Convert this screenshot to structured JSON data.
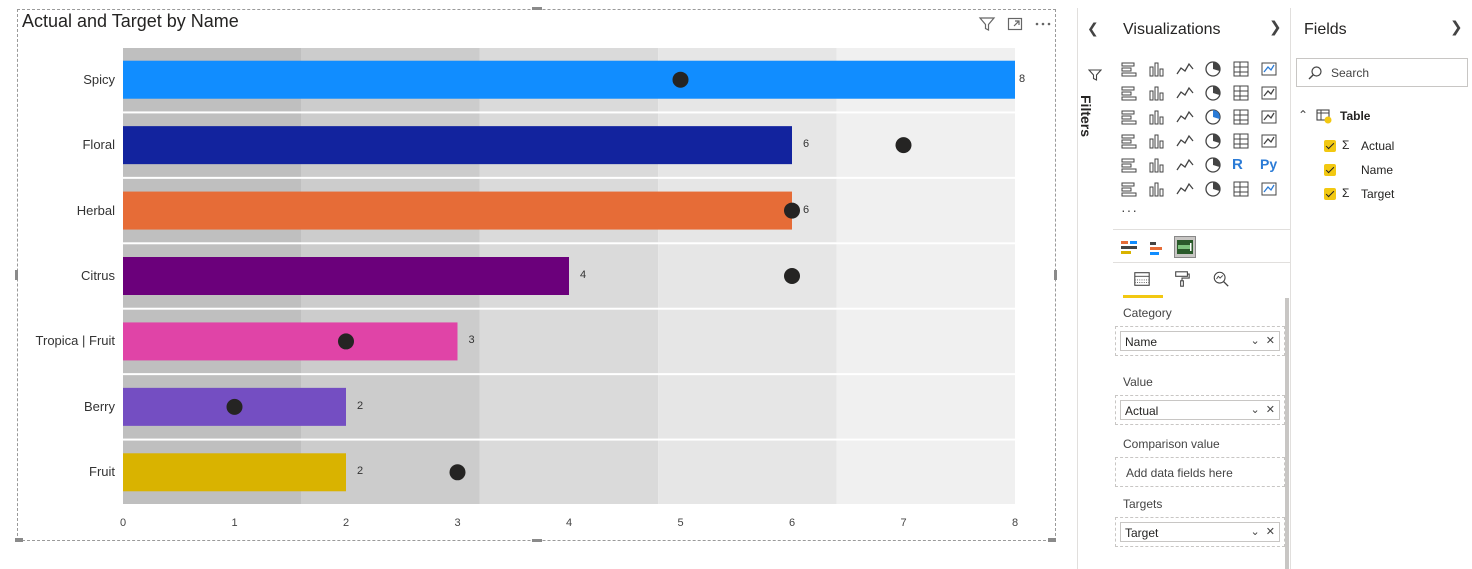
{
  "visual": {
    "title": "Actual and Target by Name"
  },
  "chart_data": {
    "type": "bar",
    "orientation": "horizontal",
    "subtype": "bullet",
    "categories": [
      "Spicy",
      "Floral",
      "Herbal",
      "Citrus",
      "Tropica | Fruit",
      "Berry",
      "Fruit"
    ],
    "series": [
      {
        "name": "Actual",
        "values": [
          8,
          6,
          6,
          4,
          3,
          2,
          2
        ]
      },
      {
        "name": "Target",
        "values": [
          5,
          7,
          6,
          6,
          2,
          1,
          3
        ]
      }
    ],
    "bar_colors": [
      "#118dff",
      "#12239e",
      "#e66c37",
      "#6b007b",
      "#e044a7",
      "#744ec2",
      "#d9b300"
    ],
    "data_labels": [
      "8",
      "6",
      "6",
      "4",
      "3",
      "2",
      "2"
    ],
    "target_marker_color": "#252423",
    "band_colors": [
      "#bfbfbf",
      "#cccccc",
      "#dadada",
      "#e6e6e6",
      "#f0f0f0"
    ],
    "band_edges": [
      0,
      1.6,
      3.2,
      4.8,
      6.4,
      8
    ],
    "xlim": [
      0,
      8
    ],
    "xticks": [
      "0",
      "1",
      "2",
      "3",
      "4",
      "5",
      "6",
      "7",
      "8"
    ],
    "xlabel": "",
    "ylabel": ""
  },
  "filters_pane": {
    "label": "Filters"
  },
  "visualizations_pane": {
    "title": "Visualizations",
    "more": "···",
    "wells": [
      {
        "label": "Category",
        "field": "Name",
        "placeholder": ""
      },
      {
        "label": "Value",
        "field": "Actual",
        "placeholder": ""
      },
      {
        "label": "Comparison value",
        "field": "",
        "placeholder": "Add data fields here"
      },
      {
        "label": "Targets",
        "field": "Target",
        "placeholder": ""
      }
    ],
    "python_label": "Py",
    "r_label": "R"
  },
  "fields_pane": {
    "title": "Fields",
    "search_placeholder": "Search",
    "table_name": "Table",
    "fields": [
      {
        "name": "Actual",
        "sigma": "Σ",
        "checked": true
      },
      {
        "name": "Name",
        "sigma": "",
        "checked": true
      },
      {
        "name": "Target",
        "sigma": "Σ",
        "checked": true
      }
    ]
  }
}
